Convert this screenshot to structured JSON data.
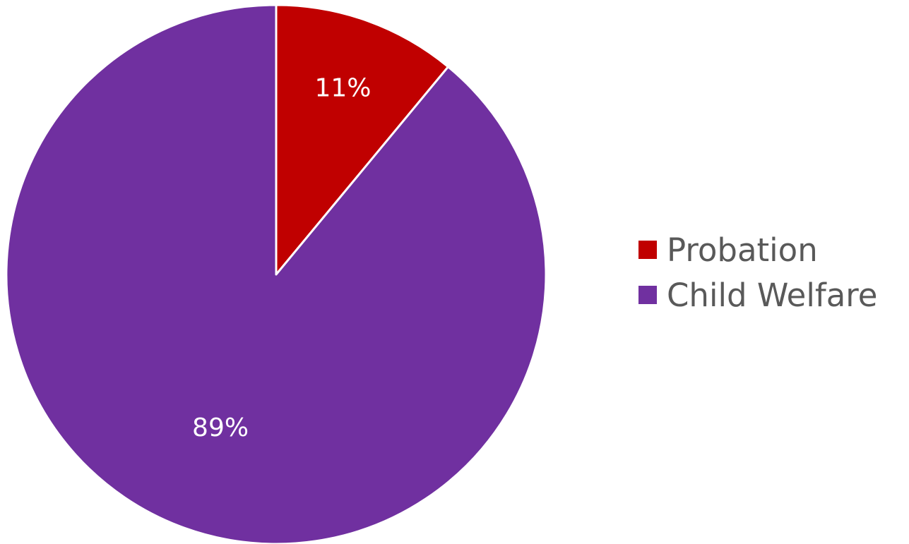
{
  "chart_data": {
    "type": "pie",
    "categories": [
      "Probation",
      "Child Welfare"
    ],
    "values": [
      11,
      89
    ],
    "data_labels": [
      "11%",
      "89%"
    ],
    "colors": [
      "#C00000",
      "#7030A0"
    ],
    "title": "",
    "legend_position": "right"
  }
}
